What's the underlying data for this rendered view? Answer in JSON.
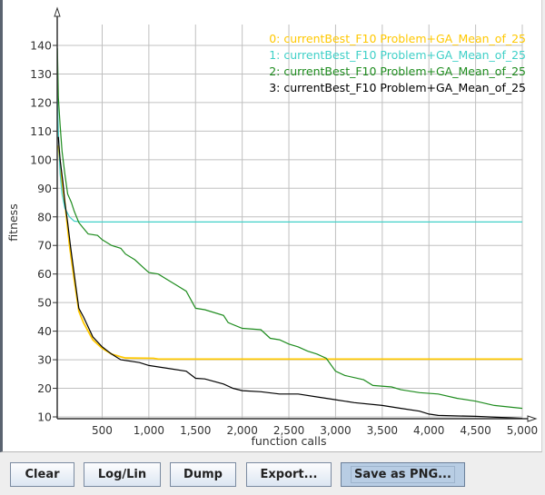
{
  "chart_data": {
    "type": "line",
    "xlabel": "function calls",
    "ylabel": "fitness",
    "xlim": [
      0,
      5000
    ],
    "ylim": [
      9.4,
      140
    ],
    "grid": true,
    "legend_placement": "top-right",
    "x_ticks": [
      "500",
      "1,000",
      "1,500",
      "2,000",
      "2,500",
      "3,000",
      "3,500",
      "4,000",
      "4,500",
      "5,000"
    ],
    "y_ticks": [
      "10",
      "20",
      "30",
      "40",
      "50",
      "60",
      "70",
      "80",
      "90",
      "100",
      "110",
      "120",
      "130",
      "140"
    ],
    "series": [
      {
        "name": "0: currentBest_F10 Problem+GA_Mean_of_25",
        "color": "#ffc800",
        "points": [
          [
            30,
            105
          ],
          [
            60,
            95
          ],
          [
            100,
            85
          ],
          [
            150,
            70
          ],
          [
            200,
            58
          ],
          [
            250,
            47
          ],
          [
            300,
            43
          ],
          [
            400,
            37
          ],
          [
            500,
            34
          ],
          [
            600,
            32
          ],
          [
            700,
            31
          ],
          [
            750,
            30.6
          ],
          [
            1050,
            30.5
          ],
          [
            1100,
            30.2
          ],
          [
            5000,
            30.2
          ]
        ]
      },
      {
        "name": "1: currentBest_F10 Problem+GA_Mean_of_25",
        "color": "#40d0c8",
        "points": [
          [
            20,
            123
          ],
          [
            30,
            110
          ],
          [
            50,
            95
          ],
          [
            70,
            88
          ],
          [
            100,
            83
          ],
          [
            150,
            80
          ],
          [
            200,
            78.5
          ],
          [
            300,
            78.2
          ],
          [
            5000,
            78.2
          ]
        ]
      },
      {
        "name": "2: currentBest_F10 Problem+GA_Mean_of_25",
        "color": "#1e8c1e",
        "points": [
          [
            20,
            139
          ],
          [
            30,
            122
          ],
          [
            50,
            112
          ],
          [
            70,
            103
          ],
          [
            100,
            95
          ],
          [
            130,
            88
          ],
          [
            170,
            85
          ],
          [
            200,
            82
          ],
          [
            250,
            78
          ],
          [
            300,
            76
          ],
          [
            350,
            74
          ],
          [
            450,
            73.5
          ],
          [
            500,
            72
          ],
          [
            600,
            70
          ],
          [
            700,
            69
          ],
          [
            750,
            67
          ],
          [
            850,
            65
          ],
          [
            950,
            62
          ],
          [
            1000,
            60.5
          ],
          [
            1100,
            60
          ],
          [
            1200,
            58
          ],
          [
            1300,
            56
          ],
          [
            1400,
            54
          ],
          [
            1500,
            48
          ],
          [
            1600,
            47.5
          ],
          [
            1800,
            45.5
          ],
          [
            1850,
            43
          ],
          [
            2000,
            41
          ],
          [
            2200,
            40.5
          ],
          [
            2300,
            37.5
          ],
          [
            2400,
            37
          ],
          [
            2500,
            35.5
          ],
          [
            2600,
            34.5
          ],
          [
            2700,
            33
          ],
          [
            2800,
            32
          ],
          [
            2900,
            30.5
          ],
          [
            3000,
            26
          ],
          [
            3100,
            24.5
          ],
          [
            3300,
            23
          ],
          [
            3400,
            21
          ],
          [
            3600,
            20.5
          ],
          [
            3700,
            19.5
          ],
          [
            3900,
            18.5
          ],
          [
            4100,
            18
          ],
          [
            4300,
            16.5
          ],
          [
            4500,
            15.5
          ],
          [
            4700,
            14
          ],
          [
            5000,
            13
          ]
        ]
      },
      {
        "name": "3: currentBest_F10 Problem+GA_Mean_of_25",
        "color": "#000000",
        "points": [
          [
            30,
            108
          ],
          [
            50,
            100
          ],
          [
            80,
            92
          ],
          [
            100,
            85
          ],
          [
            130,
            78
          ],
          [
            160,
            70
          ],
          [
            200,
            60
          ],
          [
            250,
            48
          ],
          [
            300,
            45
          ],
          [
            400,
            38
          ],
          [
            500,
            34.5
          ],
          [
            600,
            32
          ],
          [
            700,
            30
          ],
          [
            900,
            29
          ],
          [
            1000,
            28
          ],
          [
            1200,
            27
          ],
          [
            1400,
            26
          ],
          [
            1500,
            23.5
          ],
          [
            1600,
            23.3
          ],
          [
            1800,
            21.5
          ],
          [
            1900,
            20
          ],
          [
            2000,
            19.2
          ],
          [
            2200,
            18.8
          ],
          [
            2400,
            18
          ],
          [
            2600,
            18
          ],
          [
            2800,
            17
          ],
          [
            3000,
            16
          ],
          [
            3200,
            15
          ],
          [
            3500,
            14
          ],
          [
            3700,
            13
          ],
          [
            3900,
            12
          ],
          [
            4000,
            11
          ],
          [
            4100,
            10.5
          ],
          [
            4500,
            10.2
          ],
          [
            5000,
            9.5
          ]
        ]
      }
    ]
  },
  "buttons": {
    "clear": "Clear",
    "loglin": "Log/Lin",
    "dump": "Dump",
    "export": "Export...",
    "save_png": "Save as PNG..."
  }
}
